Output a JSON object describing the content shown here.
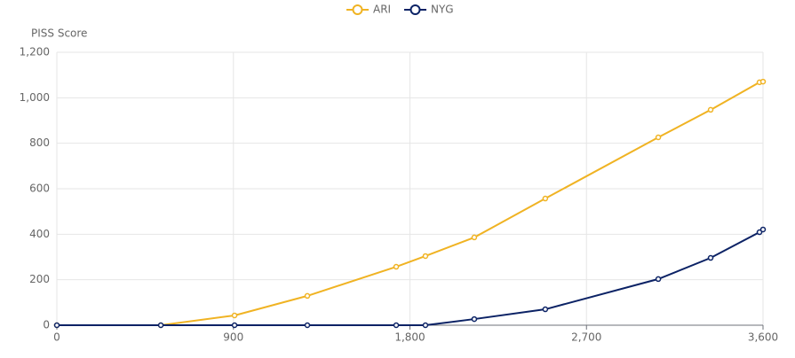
{
  "chart_data": {
    "type": "line",
    "y_label": "PISS Score",
    "x": [
      0,
      530,
      906,
      1277,
      1730,
      1879,
      2128,
      2490,
      3066,
      3333,
      3582,
      3600
    ],
    "series": [
      {
        "name": "ARI",
        "color": "#f0b323",
        "values": [
          0,
          0,
          43,
          129,
          257,
          304,
          386,
          557,
          826,
          947,
          1068,
          1071
        ]
      },
      {
        "name": "NYG",
        "color": "#0b2265",
        "values": [
          0,
          0,
          0,
          0,
          0,
          0,
          27,
          70,
          203,
          296,
          409,
          421
        ]
      }
    ],
    "xlim": [
      0,
      3600
    ],
    "xticks": [
      0,
      900,
      {
        "value": 1800,
        "label": "1,800"
      },
      {
        "value": 2700,
        "label": "2,700"
      },
      {
        "value": 3600,
        "label": "3,600"
      }
    ],
    "ylim": [
      0,
      1200
    ],
    "yticks": [
      0,
      200,
      400,
      600,
      800,
      {
        "value": 1000,
        "label": "1,000"
      },
      {
        "value": 1200,
        "label": "1,200"
      }
    ],
    "grid": true,
    "legend": "top"
  }
}
